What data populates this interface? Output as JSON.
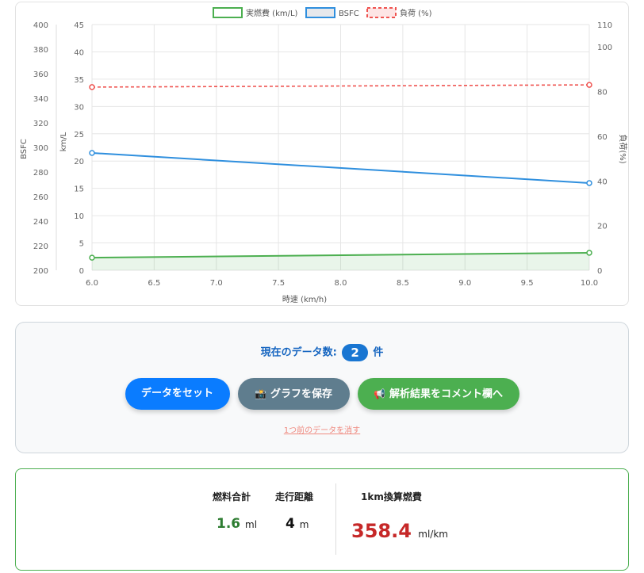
{
  "chart_data": {
    "type": "line",
    "xlabel": "時速 (km/h)",
    "x_ticks": [
      "6.0",
      "6.5",
      "7.0",
      "7.5",
      "8.0",
      "8.5",
      "9.0",
      "9.5",
      "10.0"
    ],
    "xlim": [
      6,
      10
    ],
    "y_left_kml": {
      "label": "km/L",
      "ylim": [
        0,
        45
      ],
      "ticks": [
        "0",
        "5",
        "10",
        "15",
        "20",
        "25",
        "30",
        "35",
        "40",
        "45"
      ]
    },
    "y_left_bsfc": {
      "label": "BSFC",
      "ylim": [
        200,
        400
      ],
      "ticks": [
        "200",
        "220",
        "240",
        "260",
        "280",
        "300",
        "320",
        "340",
        "360",
        "380",
        "400"
      ]
    },
    "y_right_load": {
      "label": "負荷(%)",
      "ylim": [
        0,
        110
      ],
      "ticks": [
        "0",
        "20",
        "40",
        "60",
        "80",
        "100",
        "110"
      ]
    },
    "legend_position": "top-center",
    "grid": true,
    "series": [
      {
        "name": "実燃費 (km/L)",
        "axis": "kml",
        "color": "#4caf50",
        "style": "solid",
        "fill": true,
        "x": [
          6.0,
          10.0
        ],
        "values": [
          2.3,
          3.2
        ]
      },
      {
        "name": "BSFC",
        "axis": "bsfc",
        "color": "#2f8fde",
        "style": "solid",
        "fill": false,
        "x": [
          6.0,
          10.0
        ],
        "values": [
          295.5,
          271
        ]
      },
      {
        "name": "負荷 (%)",
        "axis": "load",
        "color": "#ef5350",
        "style": "dashed",
        "fill": false,
        "x": [
          6.0,
          10.0
        ],
        "values": [
          82,
          83
        ]
      }
    ]
  },
  "controls": {
    "count_prefix": "現在のデータ数:",
    "count_value": "2",
    "count_suffix": "件",
    "set_button": "データをセット",
    "save_button": "グラフを保存",
    "save_icon": "📸",
    "comment_button": "解析結果をコメント欄へ",
    "comment_icon": "📢",
    "undo_link": "1つ前のデータを消す"
  },
  "results": {
    "fuel_label": "燃料合計",
    "fuel_value": "1.6",
    "fuel_unit": "ml",
    "distance_label": "走行距離",
    "distance_value": "4",
    "distance_unit": "m",
    "per_km_label": "1km換算燃費",
    "per_km_value": "358.4",
    "per_km_unit": "ml/km",
    "colors": {
      "fuel": "#2e7d32",
      "distance": "#111111",
      "per_km": "#c62828"
    }
  }
}
